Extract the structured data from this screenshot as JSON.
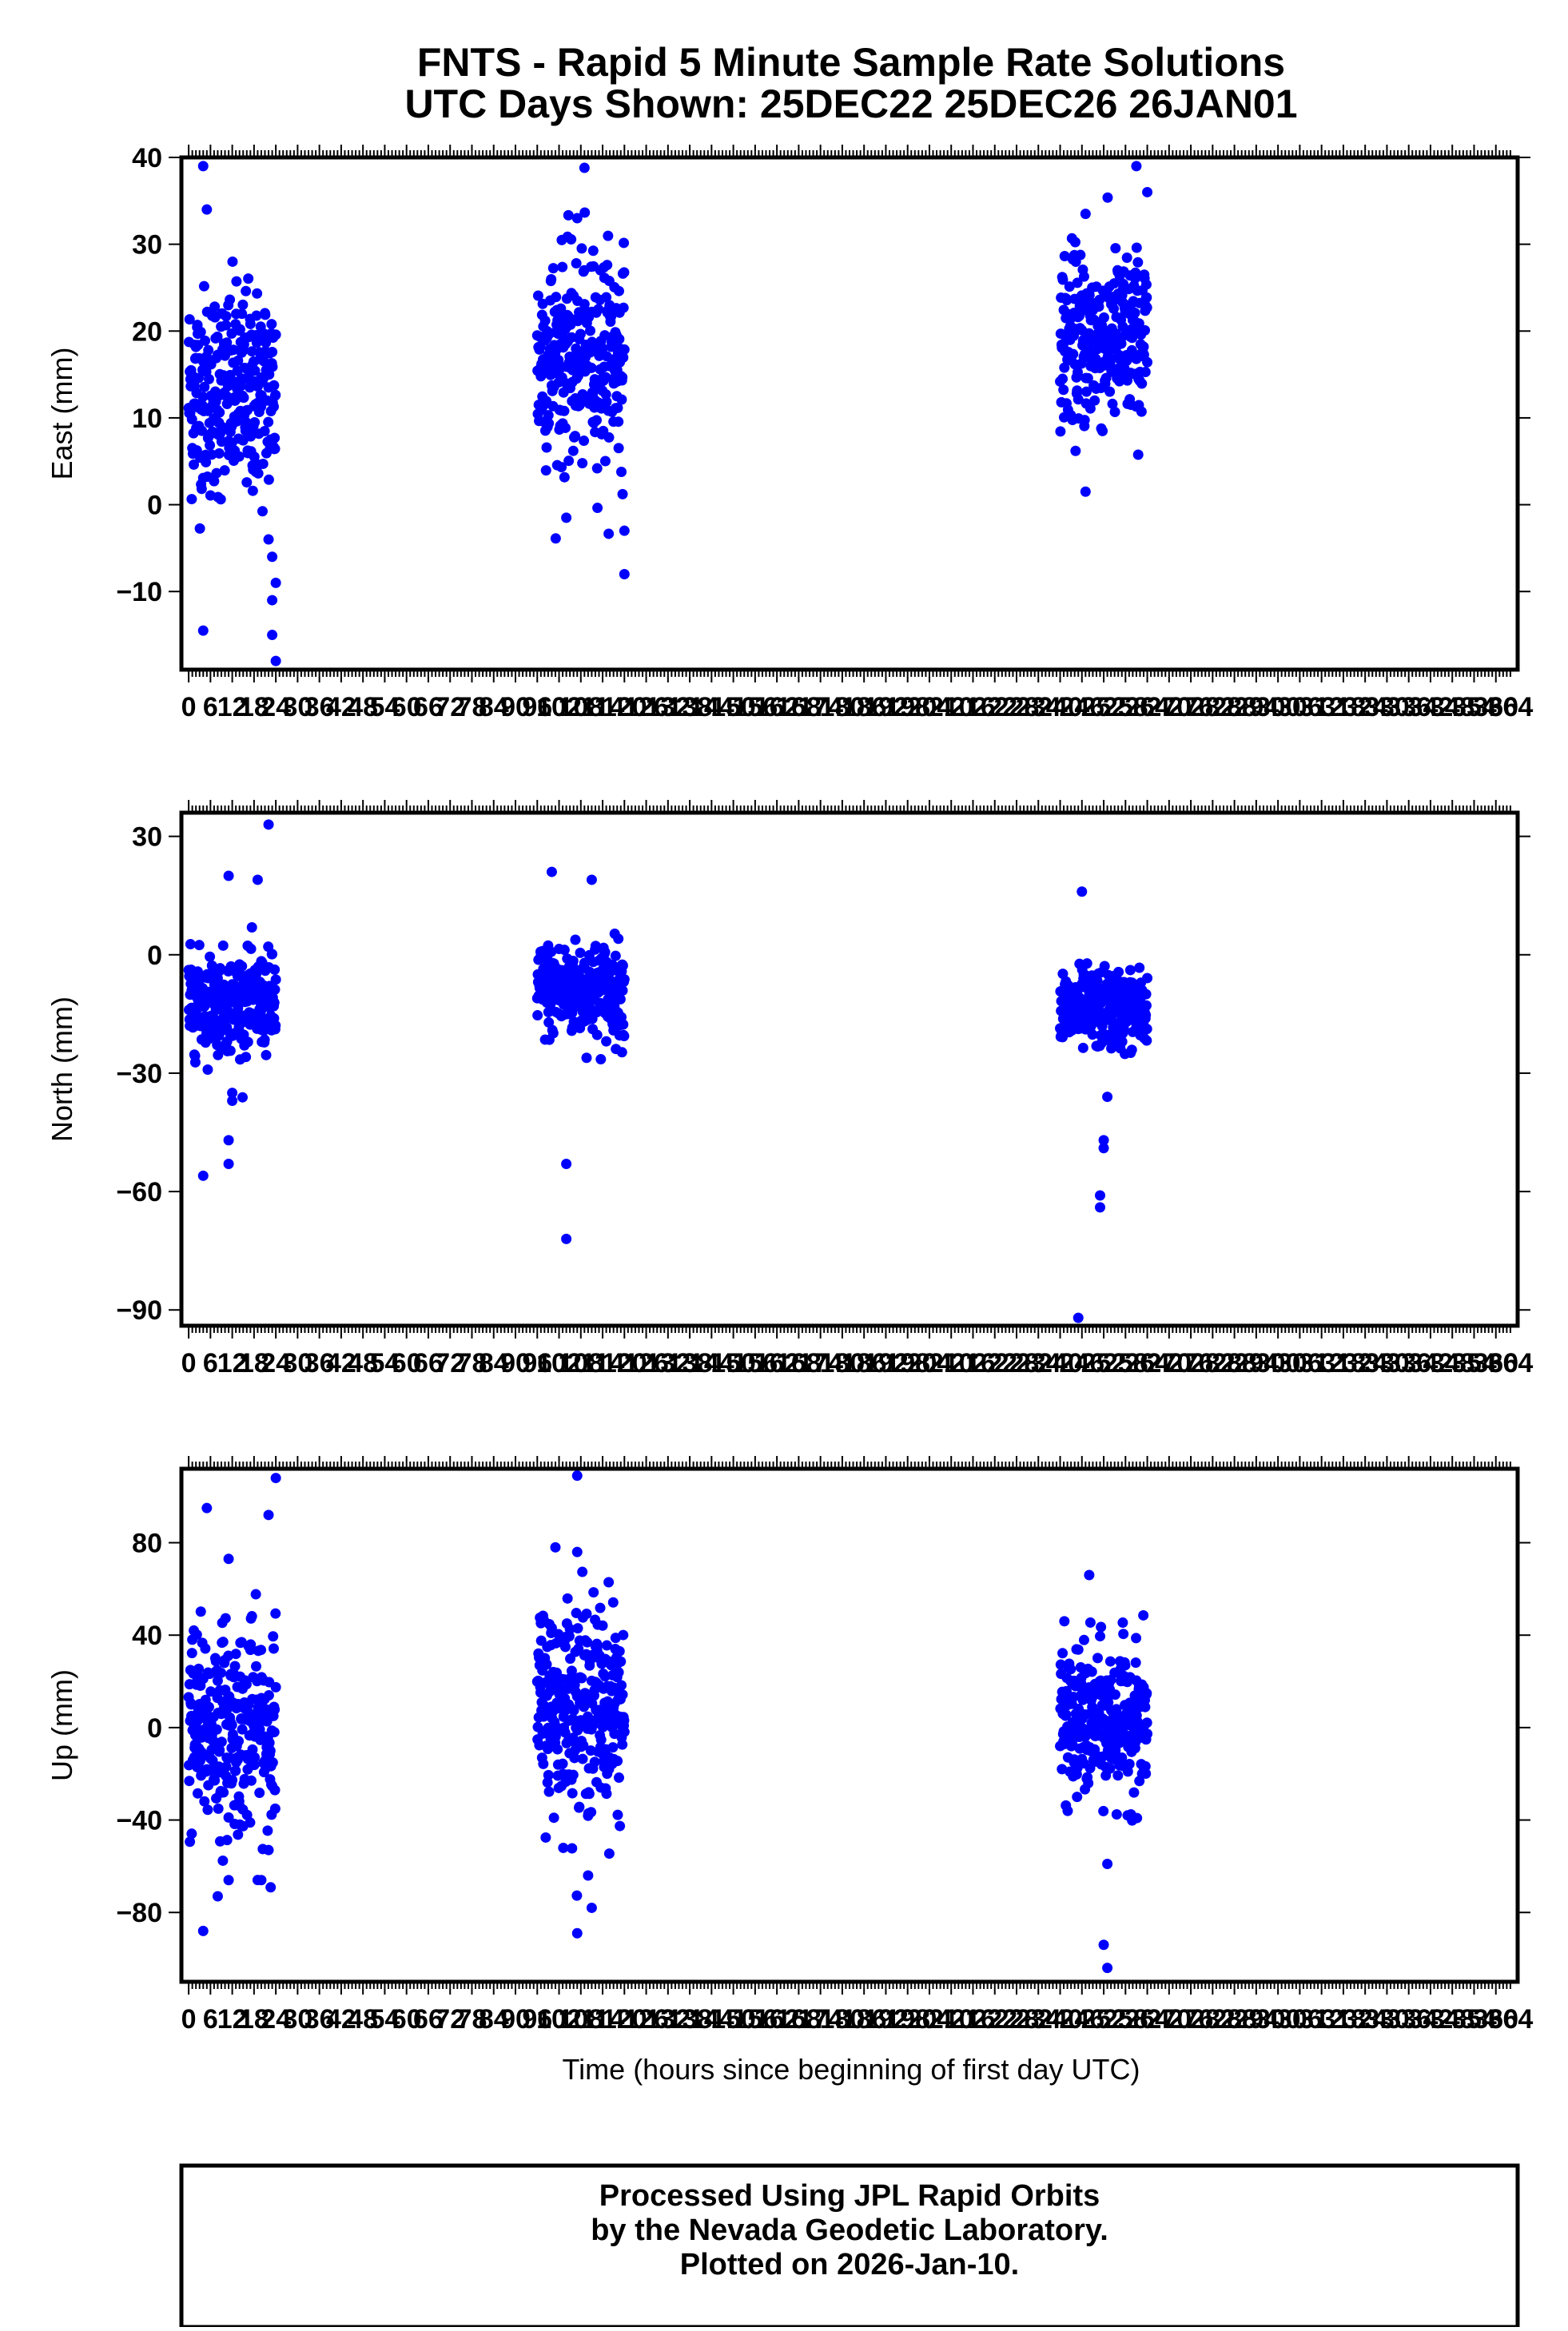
{
  "title": {
    "line1": "FNTS - Rapid 5 Minute Sample Rate Solutions",
    "line2": "UTC Days Shown:  25DEC22 25DEC26 26JAN01"
  },
  "footer": {
    "line1": "Processed Using JPL Rapid Orbits",
    "line2": "by the Nevada Geodetic Laboratory.",
    "line3": "Plotted on 2026-Jan-10."
  },
  "chart_data": [
    {
      "type": "scatter",
      "name": "east",
      "ylabel": "East (mm)",
      "xlabel": "",
      "xlim": [
        -2,
        366
      ],
      "ylim": [
        -19,
        40
      ],
      "yticks": [
        40,
        30,
        20,
        10,
        0,
        -10
      ],
      "xtick_labels": [
        "0",
        "6",
        "12",
        "18",
        "24",
        "30",
        "36",
        "42",
        "48",
        "54",
        "60",
        "66",
        "72",
        "78",
        "84",
        "90",
        "96",
        "102",
        "108",
        "114",
        "120",
        "126",
        "132",
        "138",
        "144",
        "150",
        "156",
        "162",
        "168",
        "174",
        "180",
        "186",
        "192",
        "198",
        "204",
        "210",
        "216",
        "222",
        "228",
        "234",
        "240",
        "246",
        "252",
        "258",
        "264",
        "270",
        "276",
        "282",
        "288",
        "294",
        "300",
        "306",
        "312",
        "318",
        "324",
        "330",
        "336",
        "342",
        "348",
        "354",
        "360",
        "364"
      ],
      "xtick_values": [
        0,
        6,
        12,
        18,
        24,
        30,
        36,
        42,
        48,
        54,
        60,
        66,
        72,
        78,
        84,
        90,
        96,
        102,
        108,
        114,
        120,
        126,
        132,
        138,
        144,
        150,
        156,
        162,
        168,
        174,
        180,
        186,
        192,
        198,
        204,
        210,
        216,
        222,
        228,
        234,
        240,
        246,
        252,
        258,
        264,
        270,
        276,
        282,
        288,
        294,
        300,
        306,
        312,
        318,
        324,
        330,
        336,
        342,
        348,
        354,
        360,
        364
      ],
      "color": "#0000ff",
      "segments": [
        {
          "x_start": 0,
          "x_end": 24,
          "center": 13,
          "spread": 6,
          "outliers": [
            [
              4,
              39
            ],
            [
              5,
              34
            ],
            [
              4,
              -14.5
            ],
            [
              24,
              -18
            ],
            [
              23,
              -15
            ],
            [
              23,
              -11
            ],
            [
              24,
              -9
            ],
            [
              23,
              -6
            ],
            [
              22,
              -4
            ]
          ]
        },
        {
          "x_start": 96,
          "x_end": 120,
          "center": 17,
          "spread": 6,
          "outliers": [
            [
              109,
              38.8
            ],
            [
              107,
              33
            ],
            [
              120,
              -8
            ],
            [
              120,
              -3
            ],
            [
              104,
              -1.5
            ]
          ]
        },
        {
          "x_start": 240,
          "x_end": 264,
          "center": 19,
          "spread": 5,
          "outliers": [
            [
              261,
              39
            ],
            [
              264,
              36
            ],
            [
              247,
              33.5
            ],
            [
              247,
              1.5
            ]
          ]
        }
      ]
    },
    {
      "type": "scatter",
      "name": "north",
      "ylabel": "North (mm)",
      "xlabel": "",
      "xlim": [
        -2,
        366
      ],
      "ylim": [
        -94,
        36
      ],
      "yticks": [
        30,
        0,
        -30,
        -60,
        -90
      ],
      "xtick_labels": [
        "0",
        "6",
        "12",
        "18",
        "24",
        "30",
        "36",
        "42",
        "48",
        "54",
        "60",
        "66",
        "72",
        "78",
        "84",
        "90",
        "96",
        "102",
        "108",
        "114",
        "120",
        "126",
        "132",
        "138",
        "144",
        "150",
        "156",
        "162",
        "168",
        "174",
        "180",
        "186",
        "192",
        "198",
        "204",
        "210",
        "216",
        "222",
        "228",
        "234",
        "240",
        "246",
        "252",
        "258",
        "264",
        "270",
        "276",
        "282",
        "288",
        "294",
        "300",
        "306",
        "312",
        "318",
        "324",
        "330",
        "336",
        "342",
        "348",
        "354",
        "360",
        "364"
      ],
      "xtick_values": [
        0,
        6,
        12,
        18,
        24,
        30,
        36,
        42,
        48,
        54,
        60,
        66,
        72,
        78,
        84,
        90,
        96,
        102,
        108,
        114,
        120,
        126,
        132,
        138,
        144,
        150,
        156,
        162,
        168,
        174,
        180,
        186,
        192,
        198,
        204,
        210,
        216,
        222,
        228,
        234,
        240,
        246,
        252,
        258,
        264,
        270,
        276,
        282,
        288,
        294,
        300,
        306,
        312,
        318,
        324,
        330,
        336,
        342,
        348,
        354,
        360,
        364
      ],
      "color": "#0000ff",
      "segments": [
        {
          "x_start": 0,
          "x_end": 24,
          "center": -12,
          "spread": 6,
          "outliers": [
            [
              22,
              33
            ],
            [
              4,
              -56
            ],
            [
              11,
              -53
            ],
            [
              11,
              -47
            ],
            [
              12,
              -37
            ],
            [
              12,
              -35
            ],
            [
              11,
              20
            ],
            [
              19,
              19
            ]
          ]
        },
        {
          "x_start": 96,
          "x_end": 120,
          "center": -9,
          "spread": 6,
          "outliers": [
            [
              104,
              -72
            ],
            [
              104,
              -53
            ],
            [
              100,
              21
            ],
            [
              111,
              19
            ]
          ]
        },
        {
          "x_start": 240,
          "x_end": 264,
          "center": -14,
          "spread": 5,
          "outliers": [
            [
              245,
              -92
            ],
            [
              251,
              -64
            ],
            [
              251,
              -61
            ],
            [
              252,
              -49
            ],
            [
              252,
              -47
            ],
            [
              253,
              -36
            ],
            [
              246,
              16
            ]
          ]
        }
      ]
    },
    {
      "type": "scatter",
      "name": "up",
      "ylabel": "Up (mm)",
      "xlabel": "Time (hours since beginning of first day UTC)",
      "xlim": [
        -2,
        366
      ],
      "ylim": [
        -110,
        112
      ],
      "yticks": [
        80,
        40,
        0,
        -40,
        -80
      ],
      "xtick_labels": [
        "0",
        "6",
        "12",
        "18",
        "24",
        "30",
        "36",
        "42",
        "48",
        "54",
        "60",
        "66",
        "72",
        "78",
        "84",
        "90",
        "96",
        "102",
        "108",
        "114",
        "120",
        "126",
        "132",
        "138",
        "144",
        "150",
        "156",
        "162",
        "168",
        "174",
        "180",
        "186",
        "192",
        "198",
        "204",
        "210",
        "216",
        "222",
        "228",
        "234",
        "240",
        "246",
        "252",
        "258",
        "264",
        "270",
        "276",
        "282",
        "288",
        "294",
        "300",
        "306",
        "312",
        "318",
        "324",
        "330",
        "336",
        "342",
        "348",
        "354",
        "360",
        "364"
      ],
      "xtick_values": [
        0,
        6,
        12,
        18,
        24,
        30,
        36,
        42,
        48,
        54,
        60,
        66,
        72,
        78,
        84,
        90,
        96,
        102,
        108,
        114,
        120,
        126,
        132,
        138,
        144,
        150,
        156,
        162,
        168,
        174,
        180,
        186,
        192,
        198,
        204,
        210,
        216,
        222,
        228,
        234,
        240,
        246,
        252,
        258,
        264,
        270,
        276,
        282,
        288,
        294,
        300,
        306,
        312,
        318,
        324,
        330,
        336,
        342,
        348,
        354,
        360,
        364
      ],
      "color": "#0000ff",
      "segments": [
        {
          "x_start": 0,
          "x_end": 24,
          "center": 0,
          "spread": 22,
          "outliers": [
            [
              24,
              108
            ],
            [
              5,
              95
            ],
            [
              22,
              92
            ],
            [
              11,
              73
            ],
            [
              4,
              -88
            ],
            [
              8,
              -73
            ],
            [
              11,
              -66
            ],
            [
              20,
              -66
            ],
            [
              22,
              -53
            ]
          ]
        },
        {
          "x_start": 96,
          "x_end": 120,
          "center": 10,
          "spread": 22,
          "outliers": [
            [
              107,
              109
            ],
            [
              101,
              78
            ],
            [
              107,
              76
            ],
            [
              107,
              -89
            ],
            [
              111,
              -78
            ],
            [
              110,
              -64
            ]
          ]
        },
        {
          "x_start": 240,
          "x_end": 264,
          "center": 2,
          "spread": 16,
          "outliers": [
            [
              248,
              66
            ],
            [
              252,
              -94
            ],
            [
              253,
              -104
            ],
            [
              253,
              -59
            ]
          ]
        }
      ]
    }
  ]
}
